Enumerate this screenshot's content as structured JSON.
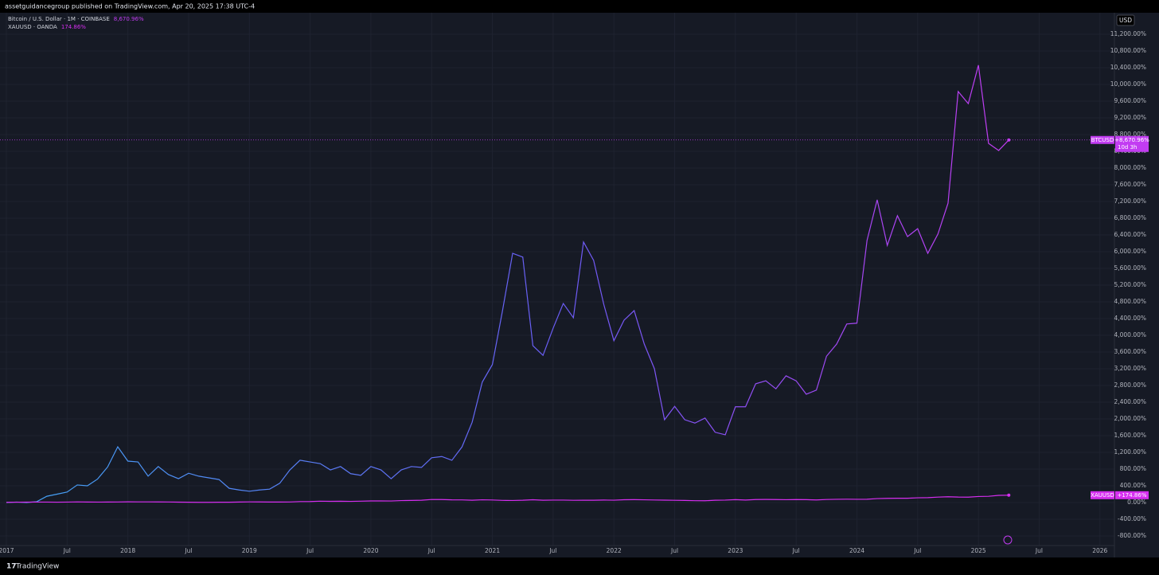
{
  "header": "assetguidancegroup published on TradingView.com, Apr 20, 2025 17:38 UTC-4",
  "footer": "TradingView",
  "chart_data": {
    "type": "line",
    "price_axis_label": "USD",
    "x": [
      "2017-01",
      "2017-02",
      "2017-03",
      "2017-04",
      "2017-05",
      "2017-06",
      "2017-07",
      "2017-08",
      "2017-09",
      "2017-10",
      "2017-11",
      "2017-12",
      "2018-01",
      "2018-02",
      "2018-03",
      "2018-04",
      "2018-05",
      "2018-06",
      "2018-07",
      "2018-08",
      "2018-09",
      "2018-10",
      "2018-11",
      "2018-12",
      "2019-01",
      "2019-02",
      "2019-03",
      "2019-04",
      "2019-05",
      "2019-06",
      "2019-07",
      "2019-08",
      "2019-09",
      "2019-10",
      "2019-11",
      "2019-12",
      "2020-01",
      "2020-02",
      "2020-03",
      "2020-04",
      "2020-05",
      "2020-06",
      "2020-07",
      "2020-08",
      "2020-09",
      "2020-10",
      "2020-11",
      "2020-12",
      "2021-01",
      "2021-02",
      "2021-03",
      "2021-04",
      "2021-05",
      "2021-06",
      "2021-07",
      "2021-08",
      "2021-09",
      "2021-10",
      "2021-11",
      "2021-12",
      "2022-01",
      "2022-02",
      "2022-03",
      "2022-04",
      "2022-05",
      "2022-06",
      "2022-07",
      "2022-08",
      "2022-09",
      "2022-10",
      "2022-11",
      "2022-12",
      "2023-01",
      "2023-02",
      "2023-03",
      "2023-04",
      "2023-05",
      "2023-06",
      "2023-07",
      "2023-08",
      "2023-09",
      "2023-10",
      "2023-11",
      "2023-12",
      "2024-01",
      "2024-02",
      "2024-03",
      "2024-04",
      "2024-05",
      "2024-06",
      "2024-07",
      "2024-08",
      "2024-09",
      "2024-10",
      "2024-11",
      "2024-12",
      "2025-01",
      "2025-02",
      "2025-03",
      "2025-04"
    ],
    "series": [
      {
        "name": "Bitcoin / U.S. Dollar · 1M · COINBASE",
        "symbol": "BTCUSD",
        "legend_value": "8,670.96%",
        "price_label": "+8,670.96%",
        "countdown": "10d 3h",
        "color": "#c23cf2",
        "gradient_from": "#42a5f5",
        "values": [
          0,
          10,
          0,
          20,
          150,
          200,
          250,
          420,
          400,
          560,
          850,
          1333,
          990,
          970,
          630,
          860,
          670,
          570,
          700,
          630,
          590,
          550,
          340,
          300,
          270,
          300,
          320,
          460,
          780,
          1010,
          970,
          930,
          780,
          860,
          690,
          650,
          860,
          780,
          570,
          780,
          860,
          840,
          1070,
          1100,
          1010,
          1330,
          1920,
          2880,
          3300,
          4590,
          5960,
          5870,
          3750,
          3520,
          4170,
          4760,
          4420,
          6230,
          5790,
          4740,
          3870,
          4360,
          4590,
          3790,
          3200,
          1980,
          2300,
          1980,
          1900,
          2020,
          1680,
          1620,
          2290,
          2290,
          2840,
          2910,
          2720,
          3030,
          2910,
          2590,
          2690,
          3500,
          3790,
          4270,
          4290,
          6270,
          7240,
          6150,
          6860,
          6360,
          6550,
          5960,
          6420,
          7160,
          9830,
          9540,
          10460,
          8590,
          8420,
          8670.96
        ]
      },
      {
        "name": "XAUUSD · OANDA",
        "symbol": "XAUUSD",
        "legend_value": "174.86%",
        "price_label": "+174.86%",
        "color": "#d62ef0",
        "values": [
          5,
          8,
          9,
          10,
          10,
          8,
          10,
          15,
          11,
          10,
          11,
          13,
          17,
          15,
          15,
          14,
          13,
          9,
          6,
          4,
          4,
          6,
          6,
          11,
          15,
          14,
          12,
          11,
          13,
          22,
          23,
          32,
          28,
          31,
          27,
          32,
          38,
          38,
          37,
          46,
          50,
          55,
          72,
          71,
          64,
          63,
          54,
          65,
          60,
          51,
          48,
          54,
          66,
          54,
          58,
          58,
          53,
          55,
          54,
          59,
          56,
          66,
          68,
          65,
          60,
          57,
          53,
          49,
          44,
          42,
          54,
          58,
          68,
          59,
          71,
          73,
          71,
          67,
          71,
          69,
          61,
          72,
          77,
          79,
          77,
          78,
          94,
          99,
          102,
          102,
          113,
          117,
          129,
          138,
          130,
          128,
          144,
          148,
          171,
          174.86
        ]
      }
    ],
    "xlim": [
      "2017-01",
      "2026-02"
    ],
    "xticks": [
      {
        "value": "2017-01",
        "label": "2017"
      },
      {
        "value": "2017-07",
        "label": "Jul"
      },
      {
        "value": "2018-01",
        "label": "2018"
      },
      {
        "value": "2018-07",
        "label": "Jul"
      },
      {
        "value": "2019-01",
        "label": "2019"
      },
      {
        "value": "2019-07",
        "label": "Jul"
      },
      {
        "value": "2020-01",
        "label": "2020"
      },
      {
        "value": "2020-07",
        "label": "Jul"
      },
      {
        "value": "2021-01",
        "label": "2021"
      },
      {
        "value": "2021-07",
        "label": "Jul"
      },
      {
        "value": "2022-01",
        "label": "2022"
      },
      {
        "value": "2022-07",
        "label": "Jul"
      },
      {
        "value": "2023-01",
        "label": "2023"
      },
      {
        "value": "2023-07",
        "label": "Jul"
      },
      {
        "value": "2024-01",
        "label": "2024"
      },
      {
        "value": "2024-07",
        "label": "Jul"
      },
      {
        "value": "2025-01",
        "label": "2025"
      },
      {
        "value": "2025-07",
        "label": "Jul"
      },
      {
        "value": "2026-01",
        "label": "2026"
      }
    ],
    "ylim": [
      -1029,
      11714
    ],
    "yticks": [
      {
        "value": -800,
        "label": "-800.00%"
      },
      {
        "value": -400,
        "label": "-400.00%"
      },
      {
        "value": 0,
        "label": "0.00%"
      },
      {
        "value": 400,
        "label": "400.00%"
      },
      {
        "value": 800,
        "label": "800.00%"
      },
      {
        "value": 1200,
        "label": "1,200.00%"
      },
      {
        "value": 1600,
        "label": "1,600.00%"
      },
      {
        "value": 2000,
        "label": "2,000.00%"
      },
      {
        "value": 2400,
        "label": "2,400.00%"
      },
      {
        "value": 2800,
        "label": "2,800.00%"
      },
      {
        "value": 3200,
        "label": "3,200.00%"
      },
      {
        "value": 3600,
        "label": "3,600.00%"
      },
      {
        "value": 4000,
        "label": "4,000.00%"
      },
      {
        "value": 4400,
        "label": "4,400.00%"
      },
      {
        "value": 4800,
        "label": "4,800.00%"
      },
      {
        "value": 5200,
        "label": "5,200.00%"
      },
      {
        "value": 5600,
        "label": "5,600.00%"
      },
      {
        "value": 6000,
        "label": "6,000.00%"
      },
      {
        "value": 6400,
        "label": "6,400.00%"
      },
      {
        "value": 6800,
        "label": "6,800.00%"
      },
      {
        "value": 7200,
        "label": "7,200.00%"
      },
      {
        "value": 7600,
        "label": "7,600.00%"
      },
      {
        "value": 8000,
        "label": "8,000.00%"
      },
      {
        "value": 8400,
        "label": "8,400.00%"
      },
      {
        "value": 8800,
        "label": "8,800.00%"
      },
      {
        "value": 9200,
        "label": "9,200.00%"
      },
      {
        "value": 9600,
        "label": "9,600.00%"
      },
      {
        "value": 10000,
        "label": "10,000.00%"
      },
      {
        "value": 10400,
        "label": "10,400.00%"
      },
      {
        "value": 10800,
        "label": "10,800.00%"
      },
      {
        "value": 11200,
        "label": "11,200.00%"
      }
    ],
    "grid": true
  }
}
